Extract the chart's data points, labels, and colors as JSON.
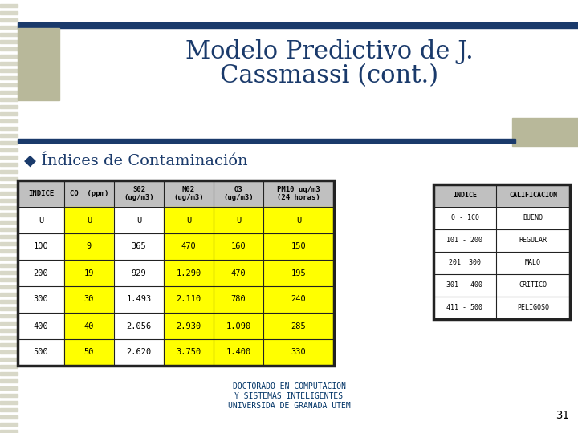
{
  "title_line1": "Modelo Predictivo de J.",
  "title_line2": "Cassmassi (cont.)",
  "bullet_text": "◆ Índices de Contaminación",
  "main_table_headers": [
    "INDICE",
    "CO  (ppm)",
    "S02\n(ug/m3)",
    "N02\n(ug/m3)",
    "O3\n(ug/m3)",
    "PM10 uq/m3\n(24 horas)"
  ],
  "main_table_data": [
    [
      "U",
      "U",
      "U",
      "U",
      "U",
      "U"
    ],
    [
      "100",
      "9",
      "365",
      "470",
      "160",
      "150"
    ],
    [
      "200",
      "19",
      "929",
      "1.290",
      "470",
      "195"
    ],
    [
      "300",
      "30",
      "1.493",
      "2.110",
      "780",
      "240"
    ],
    [
      "400",
      "40",
      "2.056",
      "2.930",
      "1.090",
      "285"
    ],
    [
      "500",
      "50",
      "2.620",
      "3.750",
      "1.400",
      "330"
    ]
  ],
  "yellow_cols": [
    1,
    3,
    4,
    5
  ],
  "side_table_headers": [
    "INDICE",
    "CALIFICACION"
  ],
  "side_table_data": [
    [
      "0 - 1C0",
      "BUENO"
    ],
    [
      "101 - 200",
      "REGULAR"
    ],
    [
      "201  300",
      "MALO"
    ],
    [
      "301 - 400",
      "CRITICO"
    ],
    [
      "411 - 500",
      "PELIGOSO"
    ]
  ],
  "footer_line1": "DOCTORADO EN COMPUTACION",
  "footer_line2": "Y SISTEMAS INTELIGENTES",
  "footer_line3": "UNIVERSIDA DE GRANADA UTEM",
  "page_num": "31",
  "bg_color": "#ffffff",
  "stripe_color": "#d8d8c8",
  "header_bar_color": "#1a3a6b",
  "title_color": "#1a3a6b",
  "table_header_bg": "#c0c0c0",
  "yellow": "#ffff00",
  "table_border": "#222222",
  "side_bar_color": "#b8b89a",
  "left_bar_color": "#b8b89a",
  "footer_color": "#003366"
}
